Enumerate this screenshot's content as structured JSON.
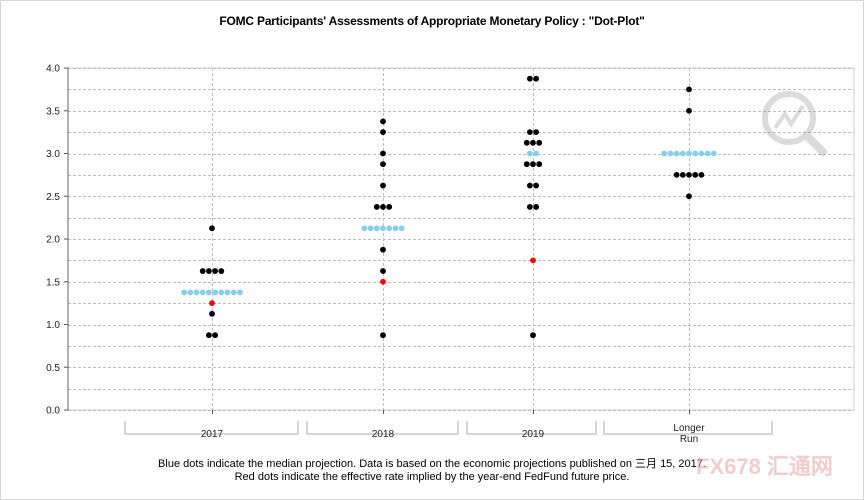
{
  "chart_data": {
    "type": "scatter",
    "title": "FOMC Participants' Assessments of Appropriate Monetary Policy : \"Dot-Plot\"",
    "categories": [
      "2017",
      "2018",
      "2019",
      "Longer Run"
    ],
    "category_label_lines": [
      [
        "2017"
      ],
      [
        "2018"
      ],
      [
        "2019"
      ],
      [
        "Longer",
        "Run"
      ]
    ],
    "ylim": [
      0,
      4
    ],
    "yticks": [
      "0.0",
      "0.5",
      "1.0",
      "1.5",
      "2.0",
      "2.5",
      "3.0",
      "3.5",
      "4.0"
    ],
    "ytick_values": [
      0,
      0.5,
      1,
      1.5,
      2,
      2.5,
      3,
      3.5,
      4
    ],
    "grid": true,
    "participant_dots": [
      {
        "category": "2017",
        "rates": [
          {
            "y": 2.125,
            "count": 1
          },
          {
            "y": 1.625,
            "count": 4
          },
          {
            "y": 1.125,
            "count": 1
          },
          {
            "y": 0.875,
            "count": 2
          }
        ]
      },
      {
        "category": "2018",
        "rates": [
          {
            "y": 3.375,
            "count": 1
          },
          {
            "y": 3.25,
            "count": 1
          },
          {
            "y": 3.0,
            "count": 1
          },
          {
            "y": 2.875,
            "count": 1
          },
          {
            "y": 2.625,
            "count": 1
          },
          {
            "y": 2.375,
            "count": 3
          },
          {
            "y": 1.875,
            "count": 1
          },
          {
            "y": 1.625,
            "count": 1
          },
          {
            "y": 0.875,
            "count": 1
          }
        ]
      },
      {
        "category": "2019",
        "rates": [
          {
            "y": 3.875,
            "count": 2
          },
          {
            "y": 3.25,
            "count": 2
          },
          {
            "y": 3.125,
            "count": 3
          },
          {
            "y": 2.875,
            "count": 3
          },
          {
            "y": 2.625,
            "count": 2
          },
          {
            "y": 2.375,
            "count": 2
          },
          {
            "y": 0.875,
            "count": 1
          }
        ]
      },
      {
        "category": "Longer Run",
        "rates": [
          {
            "y": 3.75,
            "count": 1
          },
          {
            "y": 3.5,
            "count": 1
          },
          {
            "y": 2.75,
            "count": 5
          },
          {
            "y": 2.5,
            "count": 1
          }
        ]
      }
    ],
    "median": [
      {
        "category": "2017",
        "y": 1.375,
        "count": 10
      },
      {
        "category": "2018",
        "y": 2.125,
        "count": 7
      },
      {
        "category": "2019",
        "y": 3.0,
        "count": 2
      },
      {
        "category": "Longer Run",
        "y": 3.0,
        "count": 9
      }
    ],
    "implied_rate": [
      {
        "category": "2017",
        "y": 1.25
      },
      {
        "category": "2018",
        "y": 1.5
      },
      {
        "category": "2019",
        "y": 1.75
      }
    ],
    "colors": {
      "participant": "#000000",
      "median": "#87ceeb",
      "implied": "#ff0000",
      "grid": "#bdbdbd"
    }
  },
  "footnote": {
    "line1": "Blue dots indicate the median projection. Data is based on the economic projections published on 三月 15, 2017.",
    "line2": "Red dots indicate the effective rate implied by the year-end FedFund future price."
  },
  "watermark": {
    "text": "FX678 汇通网"
  }
}
